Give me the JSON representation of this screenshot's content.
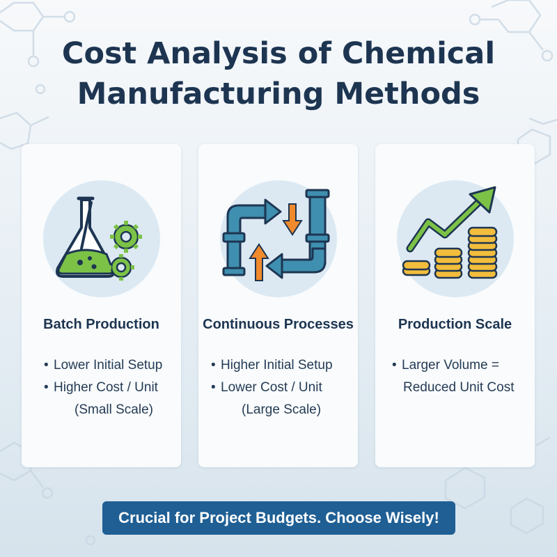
{
  "title": {
    "line1": "Cost Analysis of Chemical",
    "line2": "Manufacturing Methods"
  },
  "cards": [
    {
      "icon": "flask-gears-icon",
      "heading": "Batch Production",
      "bullets": [
        "Lower Initial Setup",
        "Higher Cost / Unit",
        "(Small Scale)"
      ]
    },
    {
      "icon": "pipes-arrows-icon",
      "heading": "Continuous Processes",
      "bullets": [
        "Higher Initial Setup",
        "Lower Cost / Unit",
        "(Large Scale)"
      ]
    },
    {
      "icon": "coins-trend-arrow-icon",
      "heading": "Production Scale",
      "bullets": [
        "Larger Volume =",
        "Reduced Unit Cost"
      ]
    }
  ],
  "banner": "Crucial for Project Budgets. Choose Wisely!",
  "colors": {
    "title": "#1d3551",
    "banner_bg": "#1f5f94",
    "icon_circle": "#dce9f3",
    "green": "#7cc247",
    "orange": "#f08a2c",
    "pipe": "#3f8fb0",
    "coin": "#f2bd3c"
  }
}
